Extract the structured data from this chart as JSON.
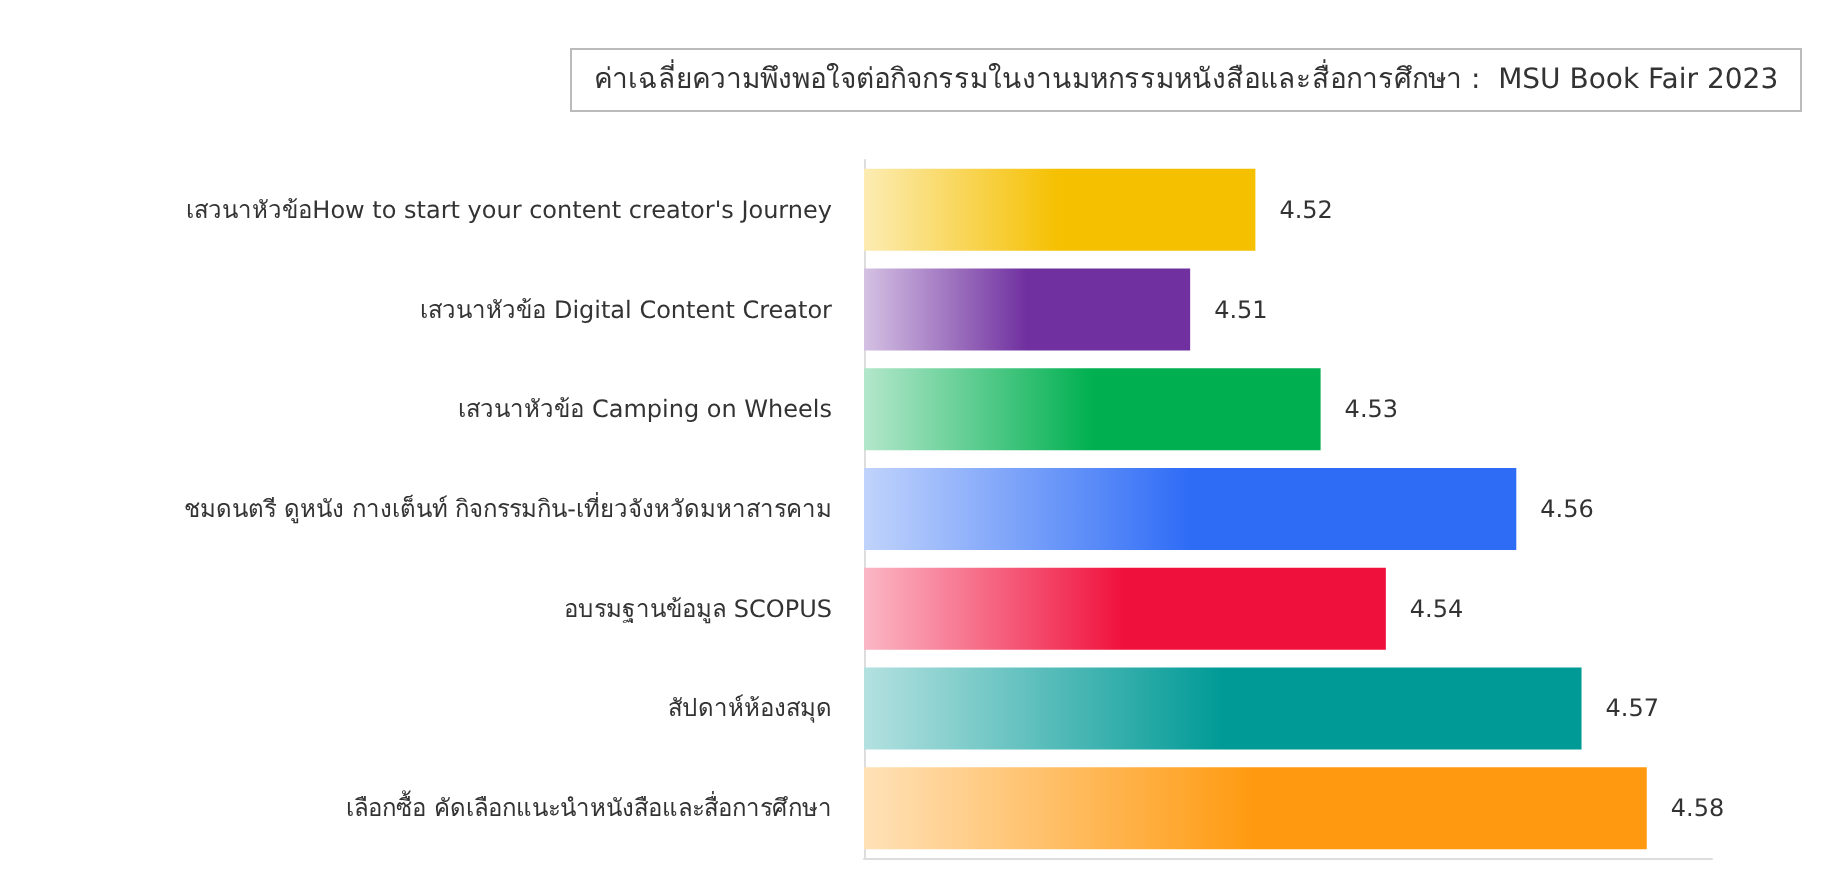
{
  "chart_data": {
    "type": "bar",
    "orientation": "horizontal",
    "title": "ค่าเฉลี่ยความพึงพอใจต่อกิจกรรมในงานมหกรรมหนังสือและสื่อการศึกษา :  MSU Book Fair 2023",
    "categories": [
      "เสวนาหัวข้อHow to start your content creator's Journey",
      "เสวนาหัวข้อ Digital Content Creator",
      "เสวนาหัวข้อ Camping on Wheels",
      "ชมดนตรี ดูหนัง กางเต็นท์ กิจกรรมกิน-เที่ยวจังหวัดมหาสารคาม",
      "อบรมฐานข้อมูล SCOPUS",
      "สัปดาห์ห้องสมุด",
      "เลือกซื้อ คัดเลือกแนะนำหนังสือและสื่อการศึกษา"
    ],
    "values": [
      4.52,
      4.51,
      4.53,
      4.56,
      4.54,
      4.57,
      4.58
    ],
    "colors": [
      "#f5c000",
      "#7030a0",
      "#00b050",
      "#2e6cf6",
      "#f0103c",
      "#009a96",
      "#ff9a10"
    ],
    "xlim": [
      4.46,
      4.59
    ],
    "tick_labels": "y",
    "data_labels": true,
    "grid": false
  }
}
